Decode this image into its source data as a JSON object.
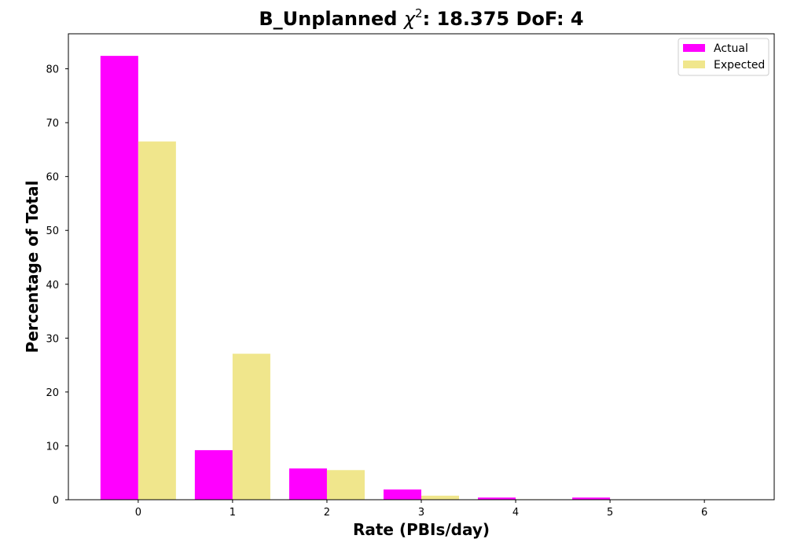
{
  "chart_data": {
    "type": "bar",
    "title_prefix": "B_Unplanned ",
    "title_chi": "χ",
    "title_sup": "2",
    "title_suffix": ": 18.375 DoF: 4",
    "xlabel": "Rate (PBIs/day)",
    "ylabel": "Percentage of Total",
    "categories": [
      "0",
      "1",
      "2",
      "3",
      "4",
      "5",
      "6"
    ],
    "x": [
      0,
      1,
      2,
      3,
      4,
      5,
      6
    ],
    "series": [
      {
        "name": "Actual",
        "color": "#ff00ff",
        "values": [
          82.4,
          9.2,
          5.8,
          1.9,
          0.4,
          0.4,
          0.0
        ]
      },
      {
        "name": "Expected",
        "color": "#f0e68c",
        "values": [
          66.5,
          27.1,
          5.5,
          0.75,
          0.08,
          0.01,
          0.0
        ]
      }
    ],
    "xlim": [
      -0.74,
      6.74
    ],
    "ylim": [
      0,
      86.5
    ],
    "yticks": [
      0,
      10,
      20,
      30,
      40,
      50,
      60,
      70,
      80
    ],
    "legend_position": "top-right",
    "grid": false
  }
}
